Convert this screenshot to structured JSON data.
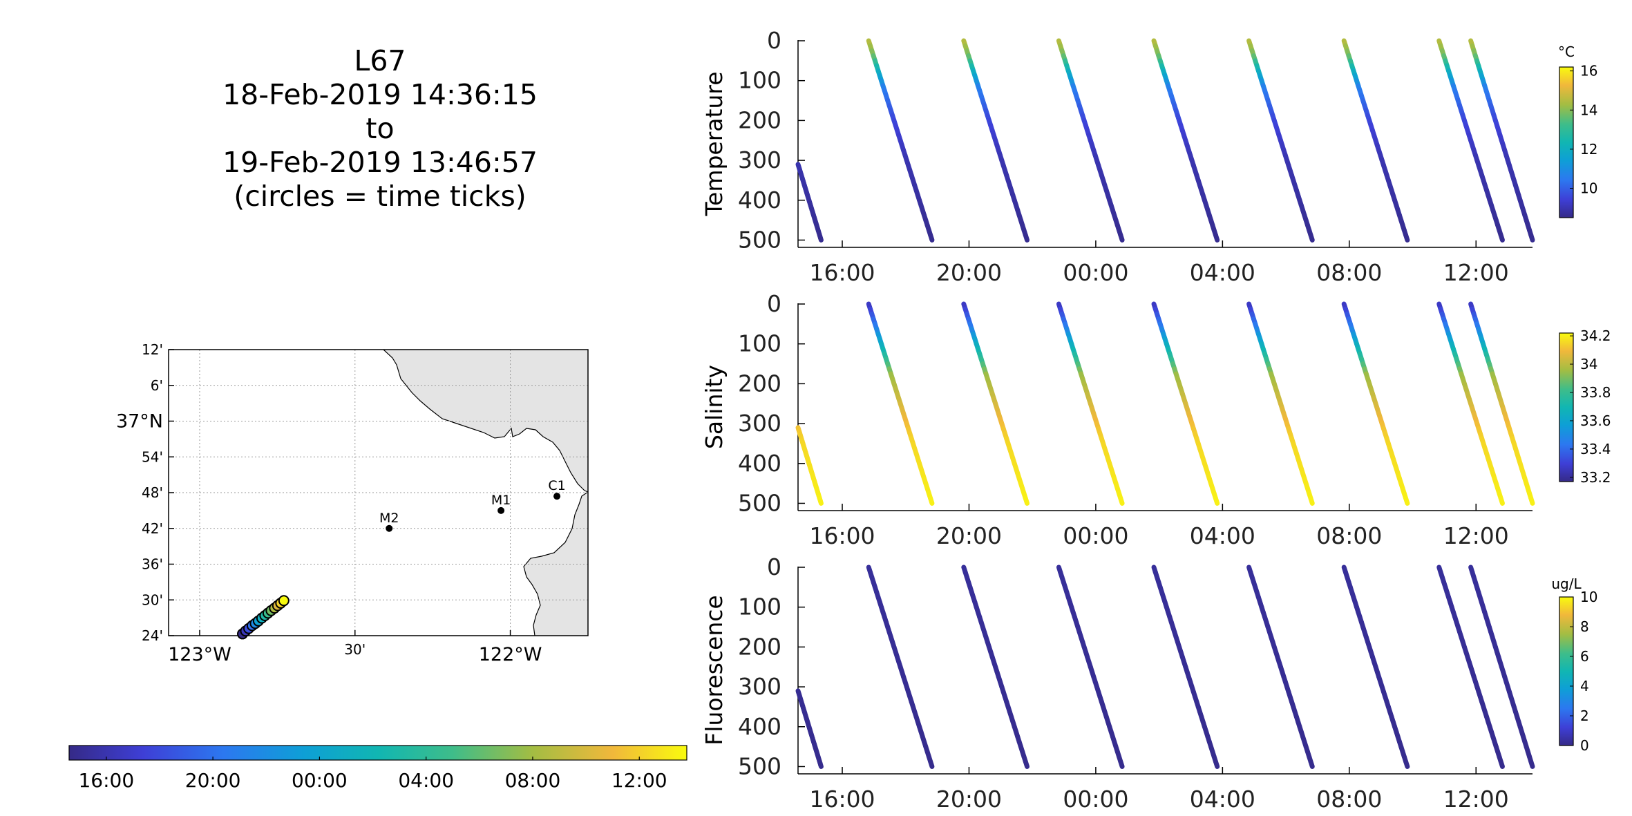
{
  "title": {
    "lines": [
      "L67",
      "18-Feb-2019 14:36:15",
      "to",
      "19-Feb-2019 13:46:57",
      "(circles = time ticks)"
    ]
  },
  "chart_data": [
    {
      "type": "scatter",
      "name": "map",
      "lat_ticks": [
        "12'",
        "6'",
        "37°N",
        "54'",
        "48'",
        "42'",
        "36'",
        "30'",
        "24'"
      ],
      "lat_values": [
        37.2,
        37.1,
        37.0,
        36.9,
        36.8,
        36.7,
        36.6,
        36.5,
        36.4
      ],
      "lon_ticks": [
        "123°W",
        "30'",
        "122°W"
      ],
      "lon_values": [
        -123.0,
        -122.5,
        -122.0
      ],
      "xlim": [
        -123.1,
        -121.75
      ],
      "ylim": [
        36.4,
        37.2
      ],
      "grid": true,
      "stations": [
        {
          "label": "M2",
          "lon": -122.39,
          "lat": 36.7
        },
        {
          "label": "M1",
          "lon": -122.03,
          "lat": 36.75
        },
        {
          "label": "C1",
          "lon": -121.85,
          "lat": 36.79
        }
      ],
      "track_time_ticks": [
        {
          "lon": -122.862,
          "lat": 36.405
        },
        {
          "lon": -122.852,
          "lat": 36.413
        },
        {
          "lon": -122.842,
          "lat": 36.42
        },
        {
          "lon": -122.831,
          "lat": 36.428
        },
        {
          "lon": -122.821,
          "lat": 36.434
        },
        {
          "lon": -122.811,
          "lat": 36.441
        },
        {
          "lon": -122.8,
          "lat": 36.449
        },
        {
          "lon": -122.79,
          "lat": 36.456
        },
        {
          "lon": -122.78,
          "lat": 36.463
        },
        {
          "lon": -122.77,
          "lat": 36.47
        },
        {
          "lon": -122.759,
          "lat": 36.477
        },
        {
          "lon": -122.749,
          "lat": 36.484
        },
        {
          "lon": -122.739,
          "lat": 36.491
        },
        {
          "lon": -122.729,
          "lat": 36.498
        }
      ],
      "time_colorbar": {
        "start": "2019-02-18T14:36:15",
        "end": "2019-02-19T13:46:57",
        "tick_labels": [
          "16:00",
          "20:00",
          "00:00",
          "04:00",
          "08:00",
          "12:00"
        ],
        "tick_times": [
          "2019-02-18T16:00",
          "2019-02-18T20:00",
          "2019-02-19T00:00",
          "2019-02-19T04:00",
          "2019-02-19T08:00",
          "2019-02-19T12:00"
        ]
      }
    },
    {
      "type": "scatter",
      "name": "Temperature",
      "ylabel": "Temperature",
      "yticks": [
        0,
        100,
        200,
        300,
        400,
        500
      ],
      "ylim": [
        0,
        520
      ],
      "y_reversed": true,
      "xlim": [
        "2019-02-18T14:36:15",
        "2019-02-19T13:46:57"
      ],
      "xticks": [
        "16:00",
        "20:00",
        "00:00",
        "04:00",
        "08:00",
        "12:00"
      ],
      "xtick_times": [
        "2019-02-18T16:00",
        "2019-02-18T20:00",
        "2019-02-19T00:00",
        "2019-02-19T04:00",
        "2019-02-19T08:00",
        "2019-02-19T12:00"
      ],
      "profiles": [
        {
          "start": "2019-02-18T14:36:15",
          "end": "2019-02-18T15:20",
          "top_depth": 310,
          "bottom_depth": 500
        },
        {
          "start": "2019-02-18T16:50",
          "end": "2019-02-18T18:50",
          "top_depth": 0,
          "bottom_depth": 500
        },
        {
          "start": "2019-02-18T19:50",
          "end": "2019-02-18T21:50",
          "top_depth": 0,
          "bottom_depth": 500
        },
        {
          "start": "2019-02-18T22:50",
          "end": "2019-02-19T00:50",
          "top_depth": 0,
          "bottom_depth": 500
        },
        {
          "start": "2019-02-19T01:50",
          "end": "2019-02-19T03:50",
          "top_depth": 0,
          "bottom_depth": 500
        },
        {
          "start": "2019-02-19T04:50",
          "end": "2019-02-19T06:50",
          "top_depth": 0,
          "bottom_depth": 500
        },
        {
          "start": "2019-02-19T07:50",
          "end": "2019-02-19T09:50",
          "top_depth": 0,
          "bottom_depth": 500
        },
        {
          "start": "2019-02-19T10:50",
          "end": "2019-02-19T12:50",
          "top_depth": 0,
          "bottom_depth": 500
        },
        {
          "start": "2019-02-19T11:50",
          "end": "2019-02-19T13:46:57",
          "top_depth": 0,
          "bottom_depth": 500
        }
      ],
      "value_by_depth": [
        {
          "depth": 0,
          "value": 14.6
        },
        {
          "depth": 40,
          "value": 13.8
        },
        {
          "depth": 80,
          "value": 12.0
        },
        {
          "depth": 120,
          "value": 10.6
        },
        {
          "depth": 200,
          "value": 9.6
        },
        {
          "depth": 300,
          "value": 9.0
        },
        {
          "depth": 500,
          "value": 8.6
        }
      ],
      "colorbar": {
        "unit": "°C",
        "min": 8.5,
        "max": 16.2,
        "ticks": [
          10,
          12,
          14,
          16
        ]
      }
    },
    {
      "type": "scatter",
      "name": "Salinity",
      "ylabel": "Salinity",
      "yticks": [
        0,
        100,
        200,
        300,
        400,
        500
      ],
      "ylim": [
        0,
        520
      ],
      "y_reversed": true,
      "xlim": [
        "2019-02-18T14:36:15",
        "2019-02-19T13:46:57"
      ],
      "xticks": [
        "16:00",
        "20:00",
        "00:00",
        "04:00",
        "08:00",
        "12:00"
      ],
      "xtick_times": [
        "2019-02-18T16:00",
        "2019-02-18T20:00",
        "2019-02-19T00:00",
        "2019-02-19T04:00",
        "2019-02-19T08:00",
        "2019-02-19T12:00"
      ],
      "profiles": "same as Temperature",
      "value_by_depth": [
        {
          "depth": 0,
          "value": 33.25
        },
        {
          "depth": 60,
          "value": 33.45
        },
        {
          "depth": 120,
          "value": 33.7
        },
        {
          "depth": 180,
          "value": 33.95
        },
        {
          "depth": 260,
          "value": 34.05
        },
        {
          "depth": 350,
          "value": 34.15
        },
        {
          "depth": 500,
          "value": 34.2
        }
      ],
      "colorbar": {
        "unit": "",
        "min": 33.17,
        "max": 34.22,
        "ticks": [
          33.2,
          33.4,
          33.6,
          33.8,
          34,
          34.2
        ]
      }
    },
    {
      "type": "scatter",
      "name": "Fluorescence",
      "ylabel": "Fluorescence",
      "yticks": [
        0,
        100,
        200,
        300,
        400,
        500
      ],
      "ylim": [
        0,
        520
      ],
      "y_reversed": true,
      "xlim": [
        "2019-02-18T14:36:15",
        "2019-02-19T13:46:57"
      ],
      "xticks": [
        "16:00",
        "20:00",
        "00:00",
        "04:00",
        "08:00",
        "12:00"
      ],
      "xtick_times": [
        "2019-02-18T16:00",
        "2019-02-18T20:00",
        "2019-02-19T00:00",
        "2019-02-19T04:00",
        "2019-02-19T08:00",
        "2019-02-19T12:00"
      ],
      "profiles": "same as Temperature",
      "value_by_depth": [
        {
          "depth": 0,
          "value": 0.3
        },
        {
          "depth": 500,
          "value": 0.1
        }
      ],
      "colorbar": {
        "unit": "ug/L",
        "min": 0,
        "max": 10,
        "ticks": [
          0,
          2,
          4,
          6,
          8,
          10
        ]
      }
    }
  ]
}
